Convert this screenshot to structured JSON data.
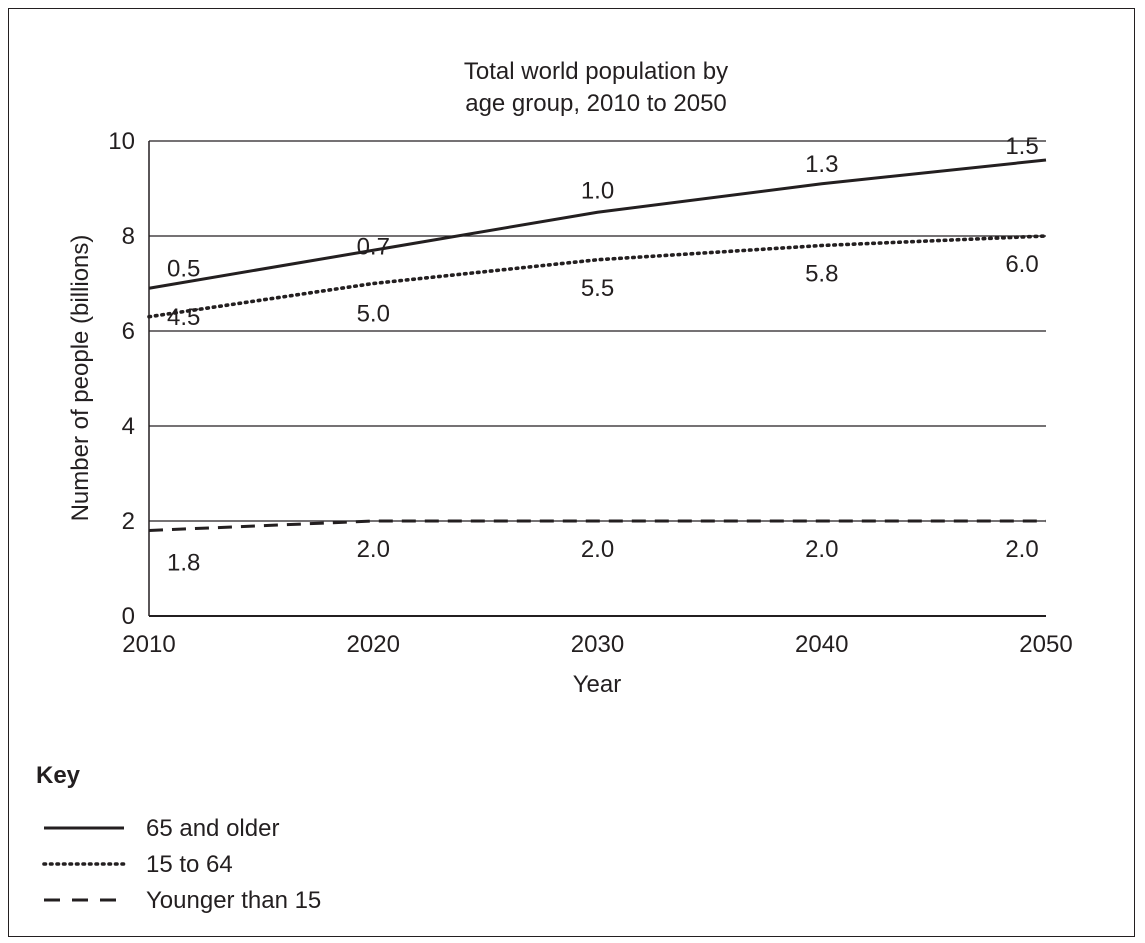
{
  "chart_data": {
    "type": "line",
    "title_lines": [
      "Total world population by",
      "age group, 2010 to 2050"
    ],
    "xlabel": "Year",
    "ylabel": "Number of people (billions)",
    "x": [
      2010,
      2020,
      2030,
      2040,
      2050
    ],
    "x_tick_labels": [
      "2010",
      "2020",
      "2030",
      "2040",
      "2050"
    ],
    "y_ticks": [
      0,
      2,
      4,
      6,
      8,
      10
    ],
    "y_tick_labels": [
      "0",
      "2",
      "4",
      "6",
      "8",
      "10"
    ],
    "xlim": [
      2010,
      2050
    ],
    "ylim": [
      0,
      10
    ],
    "grid": "horizontal",
    "note": "Lines are stacked: each line is drawn at the cumulative total; data labels show each group's own value.",
    "series": [
      {
        "name": "Younger than 15",
        "style": "dashed",
        "values": [
          1.8,
          2.0,
          2.0,
          2.0,
          2.0
        ],
        "labels": [
          "1.8",
          "2.0",
          "2.0",
          "2.0",
          "2.0"
        ],
        "cumulative": [
          1.8,
          2.0,
          2.0,
          2.0,
          2.0
        ]
      },
      {
        "name": "15 to 64",
        "style": "dotted",
        "values": [
          4.5,
          5.0,
          5.5,
          5.8,
          6.0
        ],
        "labels": [
          "4.5",
          "5.0",
          "5.5",
          "5.8",
          "6.0"
        ],
        "cumulative": [
          6.3,
          7.0,
          7.5,
          7.8,
          8.0
        ]
      },
      {
        "name": "65 and older",
        "style": "solid",
        "values": [
          0.5,
          0.7,
          1.0,
          1.3,
          1.5
        ],
        "labels": [
          "0.5",
          "0.7",
          "1.0",
          "1.3",
          "1.5"
        ],
        "cumulative": [
          6.9,
          7.7,
          8.5,
          9.1,
          9.6
        ]
      }
    ],
    "legend": {
      "title": "Key",
      "position": "bottom-left",
      "entries": [
        {
          "label": "65 and older",
          "style": "solid"
        },
        {
          "label": "15 to 64",
          "style": "dotted"
        },
        {
          "label": "Younger than 15",
          "style": "dashed"
        }
      ]
    },
    "colors": {
      "ink": "#231f20",
      "background": "#ffffff"
    }
  }
}
